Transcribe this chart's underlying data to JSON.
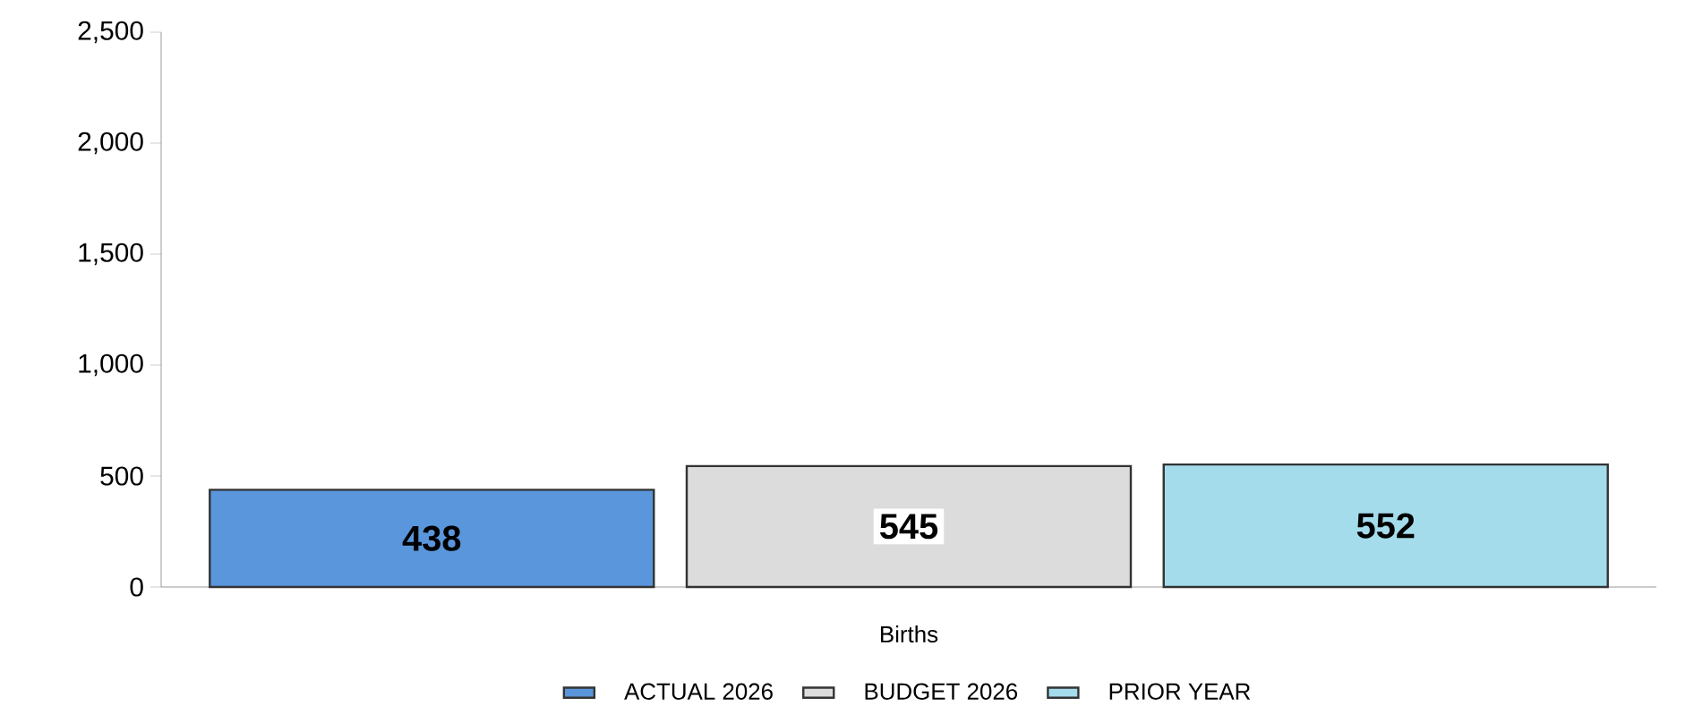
{
  "chart_data": {
    "type": "bar",
    "categories": [
      "Births"
    ],
    "series": [
      {
        "name": "ACTUAL 2026",
        "color": "#5a96dc",
        "values": [
          438
        ]
      },
      {
        "name": "BUDGET 2026",
        "color": "#dcdcdc",
        "values": [
          545
        ]
      },
      {
        "name": "PRIOR YEAR",
        "color": "#a5dcec",
        "values": [
          552
        ]
      }
    ],
    "ylim": [
      0,
      2500
    ],
    "yticks": [
      0,
      {
        "value": 500,
        "label": "500"
      },
      {
        "value": 1000,
        "label": "1,000"
      },
      {
        "value": 1500,
        "label": "1,500"
      },
      {
        "value": 2000,
        "label": "2,000"
      },
      {
        "value": 2500,
        "label": "2,500"
      }
    ],
    "data_labels": true,
    "legend": "bottom",
    "grid": false
  }
}
